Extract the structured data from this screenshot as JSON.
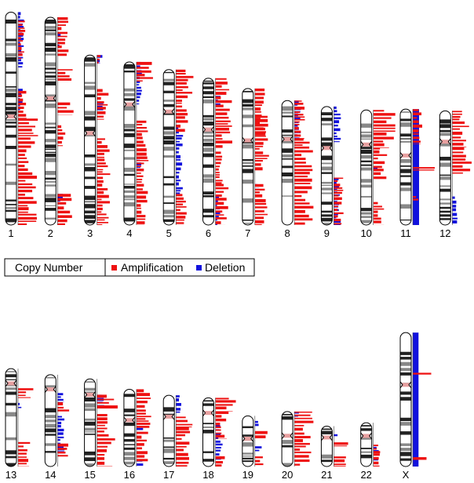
{
  "colors": {
    "amplification": "#ee1111",
    "deletion": "#1111dd",
    "band_dark": "#222222",
    "band_mid": "#888888",
    "band_light": "#ffffff",
    "outline": "#000000",
    "centromere": "#e8a0a0"
  },
  "legend": {
    "title": "Copy Number",
    "amplification": "Amplification",
    "deletion": "Deletion"
  },
  "chromosomes": [
    {
      "name": "1",
      "length": 248,
      "centromere": 0.49
    },
    {
      "name": "2",
      "length": 242,
      "centromere": 0.39
    },
    {
      "name": "3",
      "length": 198,
      "centromere": 0.46
    },
    {
      "name": "4",
      "length": 190,
      "centromere": 0.26
    },
    {
      "name": "5",
      "length": 181,
      "centromere": 0.27
    },
    {
      "name": "6",
      "length": 171,
      "centromere": 0.35
    },
    {
      "name": "7",
      "length": 159,
      "centromere": 0.38
    },
    {
      "name": "8",
      "length": 145,
      "centromere": 0.31
    },
    {
      "name": "9",
      "length": 138,
      "centromere": 0.35
    },
    {
      "name": "10",
      "length": 134,
      "centromere": 0.3
    },
    {
      "name": "11",
      "length": 135,
      "centromere": 0.4
    },
    {
      "name": "12",
      "length": 133,
      "centromere": 0.27
    },
    {
      "name": "13",
      "length": 114,
      "centromere": 0.15
    },
    {
      "name": "14",
      "length": 107,
      "centromere": 0.16
    },
    {
      "name": "15",
      "length": 102,
      "centromere": 0.18
    },
    {
      "name": "16",
      "length": 90,
      "centromere": 0.4
    },
    {
      "name": "17",
      "length": 83,
      "centromere": 0.3
    },
    {
      "name": "18",
      "length": 80,
      "centromere": 0.22
    },
    {
      "name": "19",
      "length": 59,
      "centromere": 0.45
    },
    {
      "name": "20",
      "length": 64,
      "centromere": 0.44
    },
    {
      "name": "21",
      "length": 47,
      "centromere": 0.28
    },
    {
      "name": "22",
      "length": 51,
      "centromere": 0.3
    },
    {
      "name": "X",
      "length": 156,
      "centromere": 0.39
    }
  ],
  "tracks": {
    "1": {
      "blue": [
        [
          0.0,
          0.26,
          0.25
        ],
        [
          0.36,
          0.46,
          0.2
        ]
      ],
      "red": [
        [
          0.04,
          0.22,
          0.3
        ],
        [
          0.37,
          0.5,
          0.45
        ],
        [
          0.5,
          1.0,
          0.85
        ]
      ]
    },
    "2": {
      "blue": [
        [
          0.08,
          0.14,
          0.2
        ],
        [
          0.85,
          0.9,
          0.25
        ]
      ],
      "red": [
        [
          0.0,
          0.19,
          0.5
        ],
        [
          0.25,
          0.31,
          0.7
        ],
        [
          0.41,
          0.47,
          0.7
        ],
        [
          0.52,
          0.62,
          0.4
        ],
        [
          0.85,
          1.0,
          0.6
        ]
      ]
    },
    "3": {
      "blue": [
        [
          0.0,
          0.05,
          0.3
        ],
        [
          0.28,
          0.33,
          0.3
        ]
      ],
      "red": [
        [
          0.0,
          0.05,
          0.15
        ],
        [
          0.2,
          0.38,
          0.5
        ],
        [
          0.49,
          1.0,
          0.55
        ]
      ]
    },
    "4": {
      "blue": [
        [
          0.0,
          0.26,
          0.25
        ],
        [
          0.6,
          0.65,
          0.2
        ]
      ],
      "red": [
        [
          0.0,
          0.12,
          0.7
        ],
        [
          0.36,
          1.0,
          0.5
        ]
      ]
    },
    "5": {
      "blue": [
        [
          0.37,
          0.8,
          0.3
        ]
      ],
      "red": [
        [
          0.0,
          0.3,
          0.75
        ],
        [
          0.3,
          0.4,
          0.5
        ],
        [
          0.8,
          1.0,
          0.55
        ]
      ]
    },
    "6": {
      "blue": [
        [
          0.12,
          0.2,
          0.25
        ],
        [
          0.8,
          1.0,
          0.2
        ]
      ],
      "red": [
        [
          0.0,
          0.48,
          0.7
        ],
        [
          0.5,
          0.72,
          0.3
        ],
        [
          0.72,
          1.0,
          0.55
        ]
      ]
    },
    "7": {
      "blue": [
        [
          0.7,
          0.73,
          0.2
        ]
      ],
      "red": [
        [
          0.0,
          0.35,
          0.5
        ],
        [
          0.2,
          0.6,
          0.6
        ],
        [
          0.7,
          1.0,
          0.6
        ]
      ]
    },
    "8": {
      "blue": [
        [
          0.0,
          0.31,
          0.3
        ]
      ],
      "red": [
        [
          0.0,
          0.31,
          0.45
        ],
        [
          0.31,
          1.0,
          0.8
        ]
      ]
    },
    "9": {
      "blue": [
        [
          0.0,
          0.3,
          0.3
        ],
        [
          0.6,
          1.0,
          0.3
        ]
      ],
      "red": [
        [
          0.6,
          1.0,
          0.4
        ]
      ]
    },
    "10": {
      "blue": [
        [
          0.5,
          0.53,
          0.2
        ]
      ],
      "red": [
        [
          0.0,
          0.33,
          1.0
        ],
        [
          0.33,
          0.6,
          0.6
        ],
        [
          0.8,
          1.0,
          0.45
        ]
      ]
    },
    "11": {
      "blue": [
        [
          0.0,
          1.0,
          0.35
        ]
      ],
      "red": [
        [
          0.0,
          0.3,
          0.4
        ],
        [
          0.5,
          0.53,
          1.0
        ],
        [
          0.75,
          0.8,
          0.4
        ]
      ]
    },
    "12": {
      "blue": [
        [
          0.75,
          1.0,
          0.25
        ]
      ],
      "red": [
        [
          0.0,
          0.32,
          0.85
        ],
        [
          0.32,
          0.55,
          0.8
        ]
      ]
    },
    "13": {
      "blue": [
        [
          0.35,
          0.42,
          0.15
        ]
      ],
      "red": [
        [
          0.2,
          0.3,
          0.85
        ],
        [
          0.75,
          1.0,
          0.6
        ]
      ]
    },
    "14": {
      "blue": [
        [
          0.2,
          0.3,
          0.3
        ],
        [
          0.45,
          0.85,
          0.3
        ]
      ],
      "red": [
        [
          0.3,
          0.4,
          0.6
        ],
        [
          0.75,
          0.9,
          0.5
        ]
      ]
    },
    "15": {
      "blue": [
        [
          0.18,
          0.3,
          0.3
        ]
      ],
      "red": [
        [
          0.18,
          0.35,
          1.0
        ],
        [
          0.4,
          1.0,
          0.75
        ]
      ]
    },
    "16": {
      "blue": [
        [
          0.5,
          0.55,
          0.3
        ],
        [
          0.92,
          1.0,
          0.3
        ]
      ],
      "red": [
        [
          0.0,
          0.5,
          0.7
        ],
        [
          0.55,
          0.95,
          0.5
        ]
      ]
    },
    "17": {
      "blue": [
        [
          0.0,
          0.25,
          0.25
        ]
      ],
      "red": [
        [
          0.3,
          0.45,
          0.9
        ],
        [
          0.45,
          1.0,
          0.7
        ]
      ]
    },
    "18": {
      "blue": [
        [
          0.4,
          0.9,
          0.3
        ]
      ],
      "red": [
        [
          0.0,
          0.2,
          0.85
        ],
        [
          0.2,
          0.6,
          0.6
        ],
        [
          0.85,
          1.0,
          0.6
        ]
      ]
    },
    "19": {
      "blue": [
        [
          0.1,
          0.2,
          0.3
        ],
        [
          0.6,
          0.7,
          0.3
        ]
      ],
      "red": [
        [
          0.3,
          0.45,
          0.7
        ],
        [
          0.8,
          1.0,
          0.6
        ]
      ]
    },
    "20": {
      "blue": [
        [
          0.0,
          0.1,
          0.3
        ]
      ],
      "red": [
        [
          0.0,
          0.5,
          0.8
        ],
        [
          0.5,
          1.0,
          0.7
        ]
      ]
    },
    "21": {
      "blue": [
        [
          0.2,
          0.25,
          0.2
        ]
      ],
      "red": [
        [
          0.4,
          0.5,
          0.6
        ],
        [
          0.75,
          1.0,
          0.6
        ]
      ]
    },
    "22": {
      "blue": [
        [
          0.55,
          0.65,
          0.3
        ],
        [
          0.8,
          0.9,
          0.3
        ]
      ],
      "red": [
        [
          0.5,
          0.7,
          0.4
        ],
        [
          0.7,
          1.0,
          0.6
        ]
      ]
    },
    "X": {
      "blue": [
        [
          0.0,
          1.0,
          0.3
        ]
      ],
      "red": [
        [
          0.3,
          0.32,
          0.9
        ],
        [
          0.93,
          0.95,
          0.6
        ]
      ]
    }
  }
}
